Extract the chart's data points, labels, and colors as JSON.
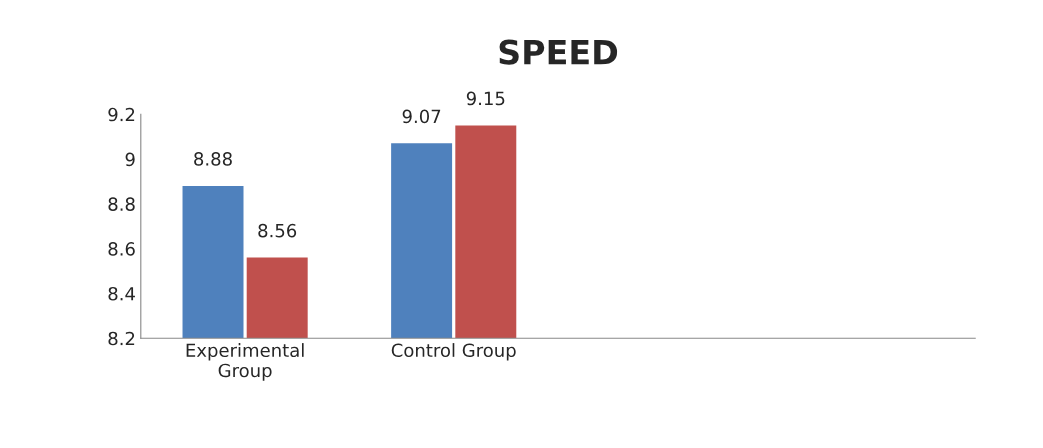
{
  "chart_data": {
    "type": "bar",
    "title": "SPEED",
    "categories": [
      "Experimental\nGroup",
      "Control Group",
      null,
      null
    ],
    "series": [
      {
        "color": "#4f81bd",
        "values": [
          8.88,
          9.07,
          null,
          null
        ]
      },
      {
        "color": "#c0504d",
        "values": [
          8.56,
          9.15,
          null,
          null
        ]
      }
    ],
    "ylim": [
      8.2,
      9.2
    ],
    "yticks": [
      8.2,
      8.4,
      8.6,
      8.8,
      9,
      9.2
    ],
    "grid": false,
    "data_labels": true
  }
}
